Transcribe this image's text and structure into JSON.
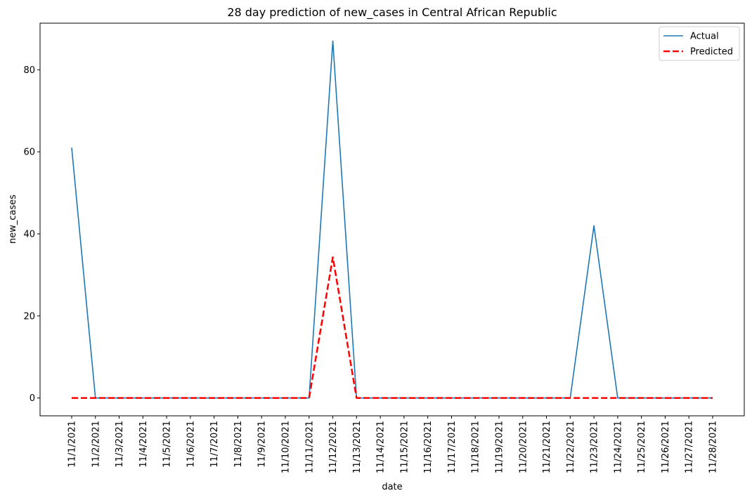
{
  "chart_data": {
    "type": "line",
    "title": "28 day prediction of new_cases in Central African Republic",
    "xlabel": "date",
    "ylabel": "new_cases",
    "x": [
      "11/1/2021",
      "11/2/2021",
      "11/3/2021",
      "11/4/2021",
      "11/5/2021",
      "11/6/2021",
      "11/7/2021",
      "11/8/2021",
      "11/9/2021",
      "11/10/2021",
      "11/11/2021",
      "11/12/2021",
      "11/13/2021",
      "11/14/2021",
      "11/15/2021",
      "11/16/2021",
      "11/17/2021",
      "11/18/2021",
      "11/19/2021",
      "11/20/2021",
      "11/21/2021",
      "11/22/2021",
      "11/23/2021",
      "11/24/2021",
      "11/25/2021",
      "11/26/2021",
      "11/27/2021",
      "11/28/2021"
    ],
    "ylim": [
      -4.35,
      91.35
    ],
    "yticks": [
      0,
      20,
      40,
      60,
      80
    ],
    "grid": false,
    "legend_position": "top-right",
    "series": [
      {
        "name": "Actual",
        "color": "#1f77b4",
        "style": "solid",
        "values": [
          61,
          0,
          0,
          0,
          0,
          0,
          0,
          0,
          0,
          0,
          0,
          87,
          0,
          0,
          0,
          0,
          0,
          0,
          0,
          0,
          0,
          0,
          42,
          0,
          0,
          0,
          0,
          0
        ]
      },
      {
        "name": "Predicted",
        "color": "#ff0000",
        "style": "dashed",
        "values": [
          0,
          0,
          0,
          0,
          0,
          0,
          0,
          0,
          0,
          0,
          0,
          34.3,
          0,
          0,
          0,
          0,
          0,
          0,
          0,
          0,
          0,
          0,
          0,
          0,
          0,
          0,
          0,
          0
        ]
      }
    ]
  }
}
